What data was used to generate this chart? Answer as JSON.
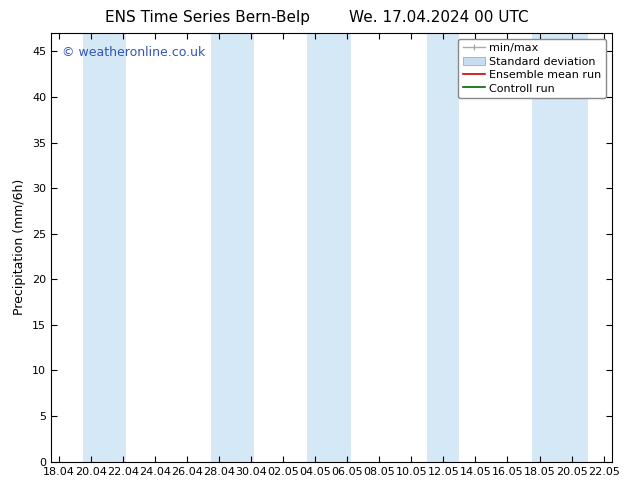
{
  "title_left": "ENS Time Series Bern-Belp",
  "title_right": "We. 17.04.2024 00 UTC",
  "ylabel": "Precipitation (mm/6h)",
  "watermark": "© weatheronline.co.uk",
  "ylim": [
    0,
    47
  ],
  "yticks": [
    0,
    5,
    10,
    15,
    20,
    25,
    30,
    35,
    40,
    45
  ],
  "xtick_labels": [
    "18.04",
    "20.04",
    "22.04",
    "24.04",
    "26.04",
    "28.04",
    "30.04",
    "02.05",
    "04.05",
    "06.05",
    "08.05",
    "10.05",
    "12.05",
    "14.05",
    "16.05",
    "18.05",
    "20.05",
    "22.05"
  ],
  "xtick_positions": [
    0,
    2,
    4,
    6,
    8,
    10,
    12,
    14,
    16,
    18,
    20,
    22,
    24,
    26,
    28,
    30,
    32,
    34
  ],
  "x_min": -0.5,
  "x_max": 34.5,
  "shaded_bands": [
    [
      1.5,
      4.2
    ],
    [
      9.5,
      12.2
    ],
    [
      15.5,
      18.2
    ],
    [
      23.0,
      25.0
    ],
    [
      29.5,
      33.0
    ]
  ],
  "shade_color": "#d5e8f5",
  "shade_alpha": 1.0,
  "minmax_color": "#aaaaaa",
  "stddev_color": "#c8ddf0",
  "ensemble_mean_color": "#cc0000",
  "control_run_color": "#006600",
  "background_color": "#ffffff",
  "legend_fontsize": 8,
  "title_fontsize": 11,
  "axis_fontsize": 9,
  "tick_fontsize": 8,
  "watermark_color": "#3355bb",
  "watermark_fontsize": 9
}
